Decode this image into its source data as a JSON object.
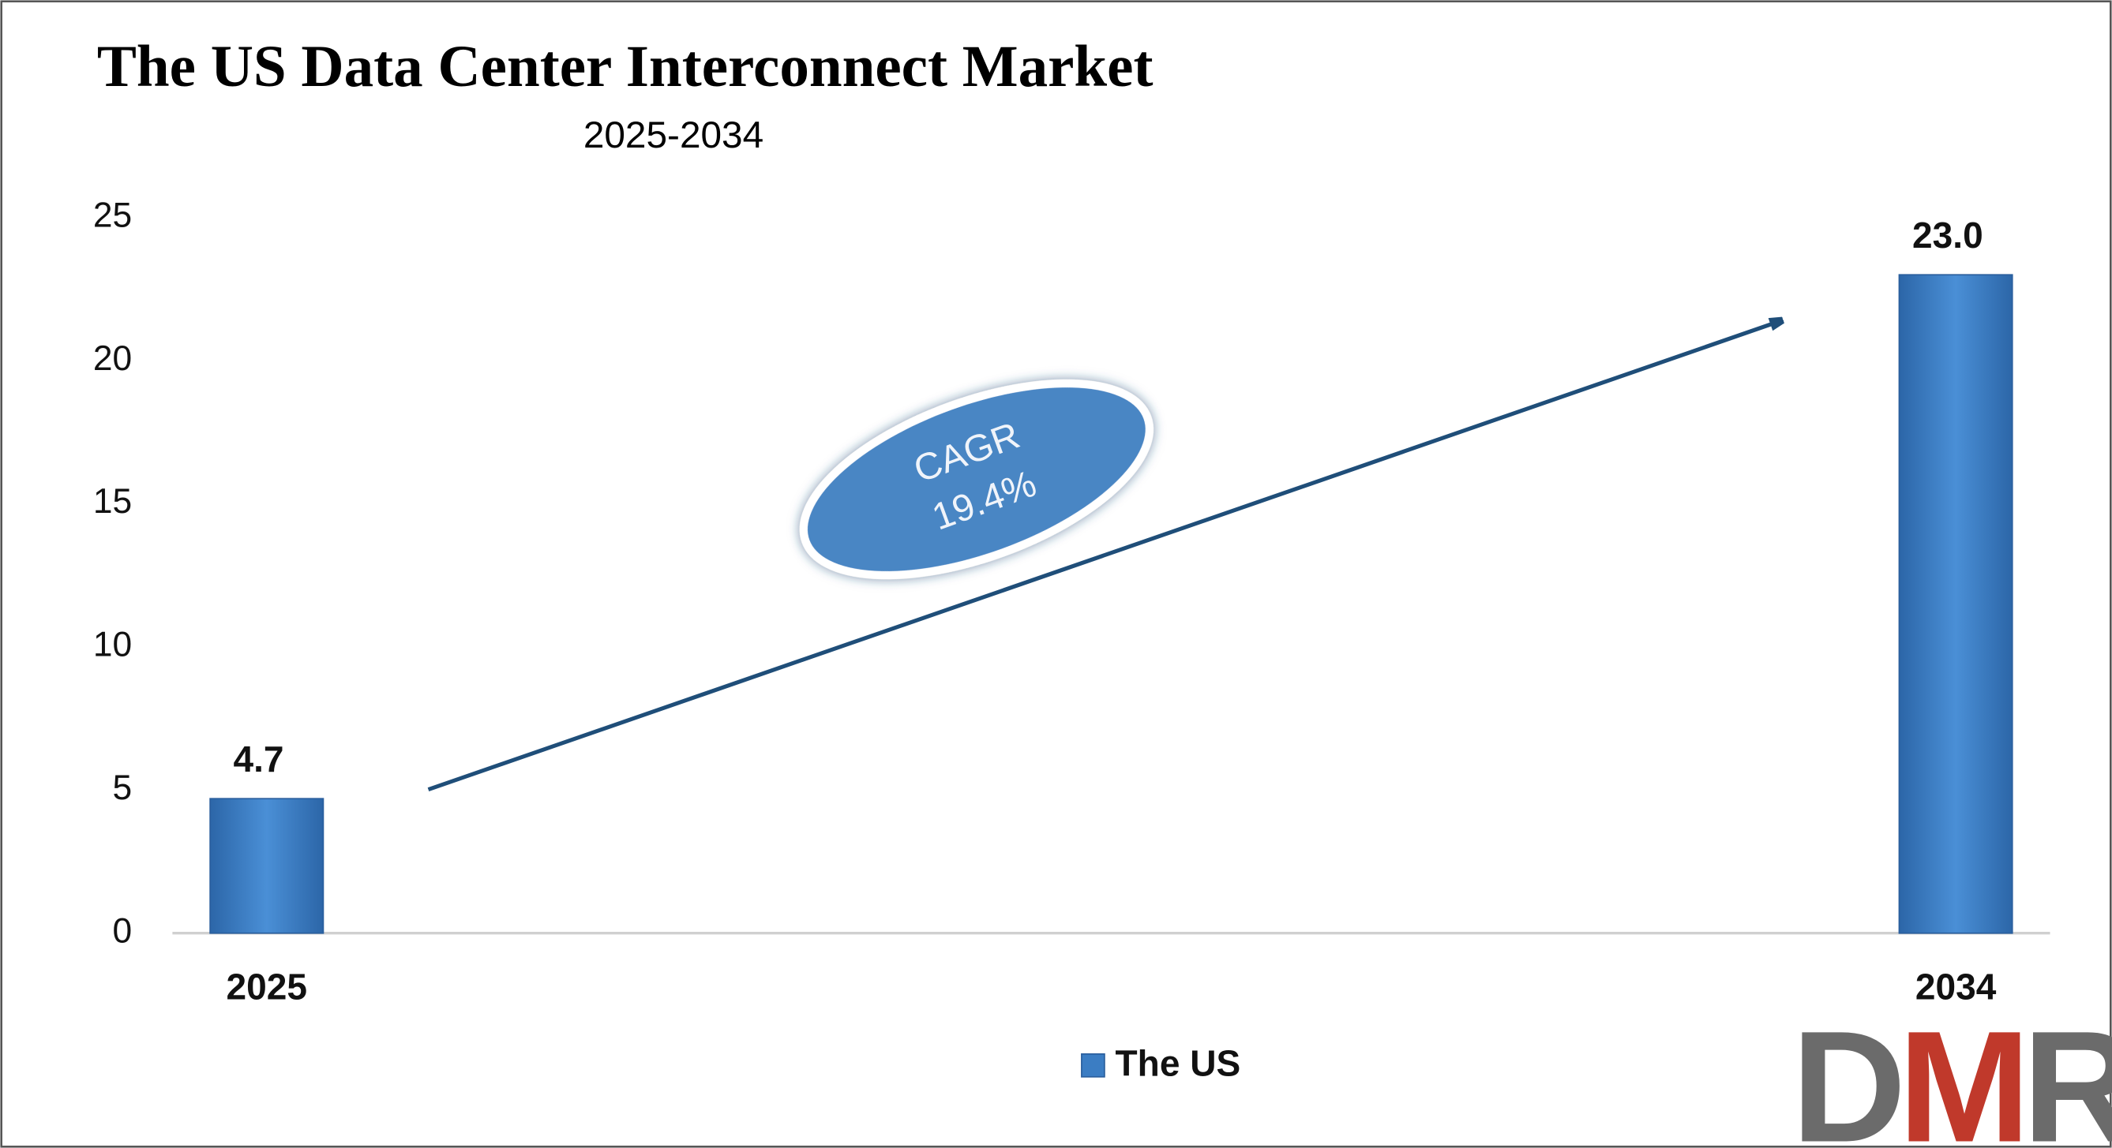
{
  "chart_data": {
    "type": "bar",
    "title": "The US Data Center Interconnect Market",
    "subtitle": "2025-2034",
    "categories": [
      "2025",
      "2034"
    ],
    "series": [
      {
        "name": "The US",
        "color": "#3b7dc3",
        "values": [
          4.7,
          23.0
        ],
        "value_labels": [
          "4.7",
          "23.0"
        ]
      }
    ],
    "ylim": [
      0,
      25
    ],
    "yticks": [
      0,
      5,
      10,
      15,
      20,
      25
    ],
    "grid": false,
    "annotation": {
      "label": "CAGR",
      "value": "19.4%"
    },
    "logo": "DMR"
  }
}
